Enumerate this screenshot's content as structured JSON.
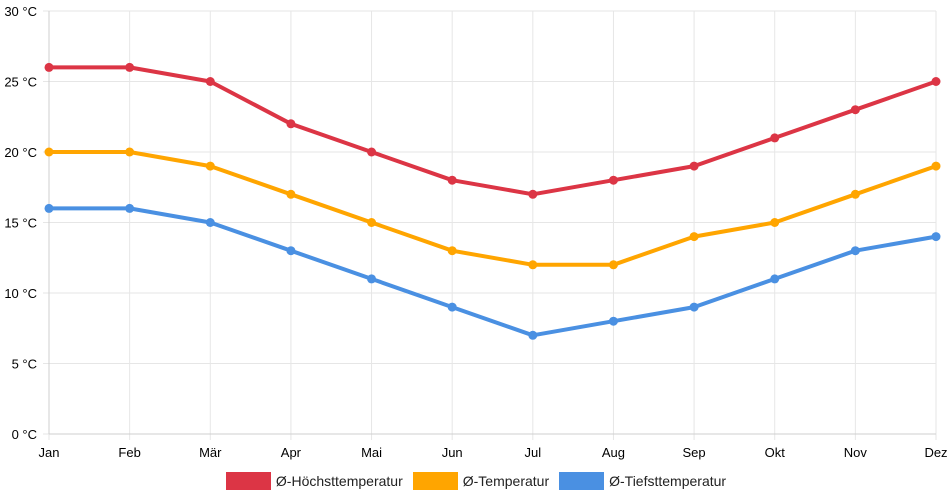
{
  "chart_data": {
    "type": "line",
    "categories": [
      "Jan",
      "Feb",
      "Mär",
      "Apr",
      "Mai",
      "Jun",
      "Jul",
      "Aug",
      "Sep",
      "Okt",
      "Nov",
      "Dez"
    ],
    "y_ticks": [
      "0 °C",
      "5 °C",
      "10 °C",
      "15 °C",
      "20 °C",
      "25 °C",
      "30 °C"
    ],
    "ylim": [
      0,
      30
    ],
    "grid": true,
    "legend_position": "bottom-center",
    "series": [
      {
        "name": "Ø-Höchsttemperatur",
        "color": "#dc3545",
        "values": [
          26,
          26,
          25,
          22,
          20,
          18,
          17,
          18,
          19,
          21,
          23,
          25
        ]
      },
      {
        "name": "Ø-Temperatur",
        "color": "#ffa500",
        "values": [
          20,
          20,
          19,
          17,
          15,
          13,
          12,
          12,
          14,
          15,
          17,
          19
        ]
      },
      {
        "name": "Ø-Tiefsttemperatur",
        "color": "#4a90e2",
        "values": [
          16,
          16,
          15,
          13,
          11,
          9,
          7,
          8,
          9,
          11,
          13,
          14
        ]
      }
    ]
  }
}
